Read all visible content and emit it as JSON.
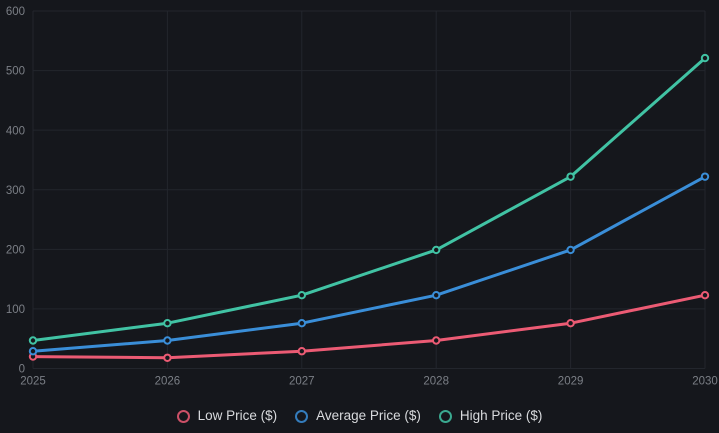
{
  "theme": {
    "background": "#15171c",
    "grid_color": "#23262d",
    "tick_color": "#7b7f86",
    "legend_text_color": "#d8dadd",
    "marker_fill": "#15171c"
  },
  "chart_data": {
    "type": "line",
    "title": "",
    "xlabel": "",
    "ylabel": "",
    "x": [
      "2025",
      "2026",
      "2027",
      "2028",
      "2029",
      "2030"
    ],
    "series": [
      {
        "name": "Low Price ($)",
        "color": "#ec5b74",
        "values": [
          20,
          18,
          29,
          47,
          76,
          123
        ]
      },
      {
        "name": "Average Price ($)",
        "color": "#3a8ed8",
        "values": [
          29,
          47,
          76,
          123,
          199,
          322
        ]
      },
      {
        "name": "High Price ($)",
        "color": "#41c3a4",
        "values": [
          47,
          76,
          123,
          199,
          322,
          521
        ]
      }
    ],
    "ylim": [
      0,
      600
    ],
    "y_ticks": [
      0,
      100,
      200,
      300,
      400,
      500,
      600
    ],
    "grid": true,
    "legend_position": "bottom"
  }
}
